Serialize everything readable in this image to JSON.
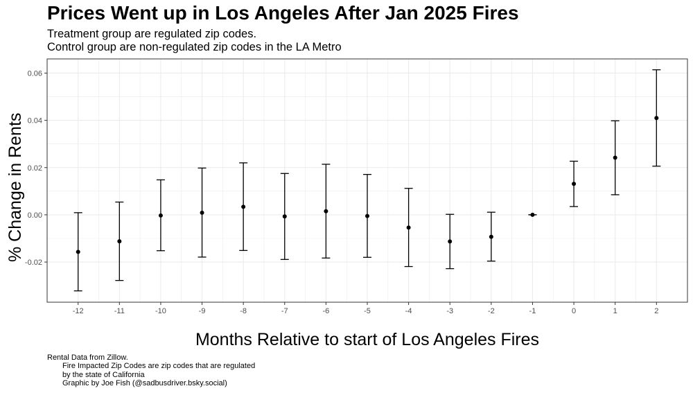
{
  "title": "Prices Went up in Los Angeles After Jan 2025 Fires",
  "subtitle": [
    "Treatment group are regulated zip codes.",
    "Control group are non-regulated zip codes in the LA Metro"
  ],
  "caption": [
    "Rental Data from Zillow.",
    "Fire Impacted Zip Codes are zip codes that are regulated",
    "by the state of California",
    "Graphic by Joe Fish (@sadbusdriver.bsky.social)"
  ],
  "chart_data": {
    "type": "scatter",
    "style": "point-with-errorbars",
    "xlabel": "Months Relative to start of Los Angeles Fires",
    "ylabel": "% Change in Rents",
    "x": [
      -12,
      -11,
      -10,
      -9,
      -8,
      -7,
      -6,
      -5,
      -4,
      -3,
      -2,
      -1,
      0,
      1,
      2
    ],
    "x_tick_labels": [
      "-12",
      "-11",
      "-10",
      "-9",
      "-8",
      "-7",
      "-6",
      "-5",
      "-4",
      "-3",
      "-2",
      "-1",
      "0",
      "1",
      "2"
    ],
    "y": [
      -0.0157,
      -0.0112,
      -0.0003,
      0.0009,
      0.0034,
      -0.0007,
      0.0015,
      -0.0005,
      -0.0054,
      -0.0113,
      -0.0093,
      0.0,
      0.0131,
      0.0242,
      0.041
    ],
    "y_lower": [
      -0.0322,
      -0.0278,
      -0.0152,
      -0.0179,
      -0.0151,
      -0.0189,
      -0.0183,
      -0.018,
      -0.0219,
      -0.0228,
      -0.0196,
      0.0,
      0.0035,
      0.0085,
      0.0206
    ],
    "y_upper": [
      0.0009,
      0.0054,
      0.0148,
      0.0198,
      0.022,
      0.0175,
      0.0214,
      0.0171,
      0.0112,
      0.0002,
      0.0011,
      0.0,
      0.0227,
      0.0398,
      0.0614
    ],
    "y_ticks": [
      -0.02,
      0.0,
      0.02,
      0.04,
      0.06
    ],
    "y_tick_labels": [
      "-0.02",
      "0.00",
      "0.02",
      "0.04",
      "0.06"
    ],
    "xlim": [
      -12.75,
      2.75
    ],
    "ylim": [
      -0.037,
      0.066
    ],
    "grid": true,
    "colors": {
      "point": "#000000",
      "grid": "#ebebeb",
      "border": "#333333",
      "tick_text": "#4d4d4d"
    }
  }
}
